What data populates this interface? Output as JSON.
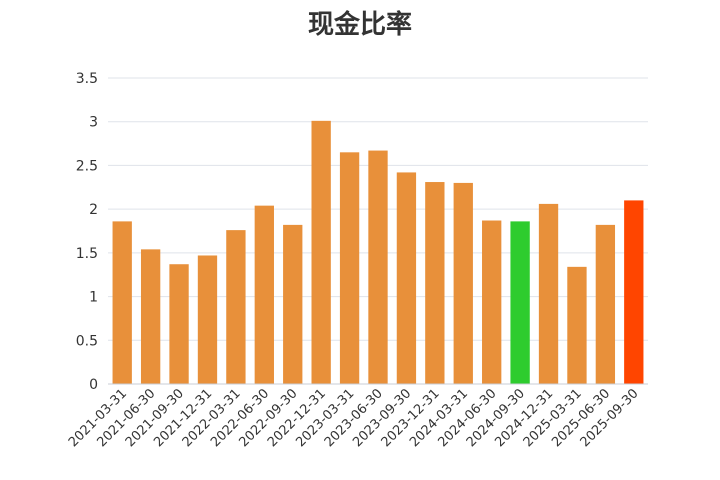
{
  "chart_data": {
    "type": "bar",
    "title": "现金比率",
    "xlabel": "",
    "ylabel": "",
    "categories": [
      "2021-03-31",
      "2021-06-30",
      "2021-09-30",
      "2021-12-31",
      "2022-03-31",
      "2022-06-30",
      "2022-09-30",
      "2022-12-31",
      "2023-03-31",
      "2023-06-30",
      "2023-09-30",
      "2023-12-31",
      "2024-03-31",
      "2024-06-30",
      "2024-09-30",
      "2024-12-31",
      "2025-03-31",
      "2025-06-30",
      "2025-09-30"
    ],
    "values": [
      1.86,
      1.54,
      1.37,
      1.47,
      1.76,
      2.04,
      1.82,
      3.01,
      2.65,
      2.67,
      2.42,
      2.31,
      2.3,
      1.87,
      1.86,
      2.06,
      1.34,
      1.82,
      2.1
    ],
    "colors": [
      "#E8903A",
      "#E8903A",
      "#E8903A",
      "#E8903A",
      "#E8903A",
      "#E8903A",
      "#E8903A",
      "#E8903A",
      "#E8903A",
      "#E8903A",
      "#E8903A",
      "#E8903A",
      "#E8903A",
      "#E8903A",
      "#2ECC2E",
      "#E8903A",
      "#E8903A",
      "#E8903A",
      "#FF4500"
    ],
    "yticks": [
      "0",
      "0.5",
      "1",
      "1.5",
      "2",
      "2.5",
      "3",
      "3.5"
    ],
    "ylim": [
      0,
      3.5
    ],
    "grid": true,
    "legend": "none"
  }
}
